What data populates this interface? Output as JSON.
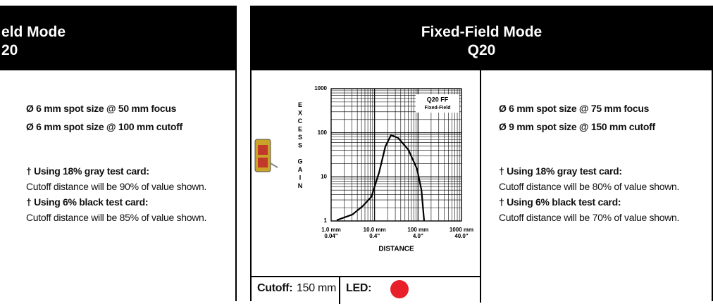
{
  "left_panel": {
    "header": [
      "eld Mode",
      "20"
    ],
    "specs": [
      "Ø 6 mm spot size @ 50 mm focus",
      "Ø 6 mm spot size @ 100 mm cutoff"
    ],
    "notes": [
      {
        "title": "† Using 18% gray test card:",
        "text": "Cutoff distance will be 90% of value shown."
      },
      {
        "title": "† Using 6% black test card:",
        "text": "Cutoff distance will be 85% of value shown."
      }
    ]
  },
  "right_panel": {
    "header": [
      "Fixed-Field Mode",
      "Q20"
    ],
    "specs": [
      "Ø 6 mm spot size @ 75 mm focus",
      "Ø 9 mm spot size @ 150 mm cutoff"
    ],
    "notes": [
      {
        "title": "† Using 18% gray test card:",
        "text": "Cutoff distance will be 80% of value shown."
      },
      {
        "title": "† Using 6% black test card:",
        "text": "Cutoff distance will be 70% of value shown."
      }
    ],
    "cutoff_label": "Cutoff:",
    "cutoff_value": "150 mm",
    "led_label": "LED:",
    "led_color": "#e8202a"
  },
  "chart_data": {
    "type": "line",
    "annotation": [
      "Q20 FF",
      "Fixed-Field"
    ],
    "x_label": "DISTANCE",
    "y_label": "EXCESS GAIN",
    "x": [
      1.35,
      3.1,
      5.4,
      8.4,
      12.7,
      17.7,
      24,
      35,
      60,
      95,
      120,
      138
    ],
    "values": [
      1.04,
      1.4,
      2.2,
      3.5,
      12.6,
      49,
      89,
      76,
      41,
      15,
      5,
      1.0
    ],
    "color": "#000000",
    "log_x": true,
    "log_y": true,
    "grid": true,
    "xlim": [
      1,
      1000
    ],
    "ylim": [
      1,
      1000
    ],
    "xticks": [
      {
        "value": 1,
        "label": "1.0 mm"
      },
      {
        "value": 10,
        "label": "10.0 mm"
      },
      {
        "value": 100,
        "label": "100 mm"
      },
      {
        "value": 1000,
        "label": "1000 mm"
      }
    ],
    "xtick_sublabels": [
      "0.04\"",
      "0.4\"",
      "4.0\"",
      "40.0\""
    ],
    "yticks": [
      1,
      10,
      100,
      1000
    ]
  }
}
